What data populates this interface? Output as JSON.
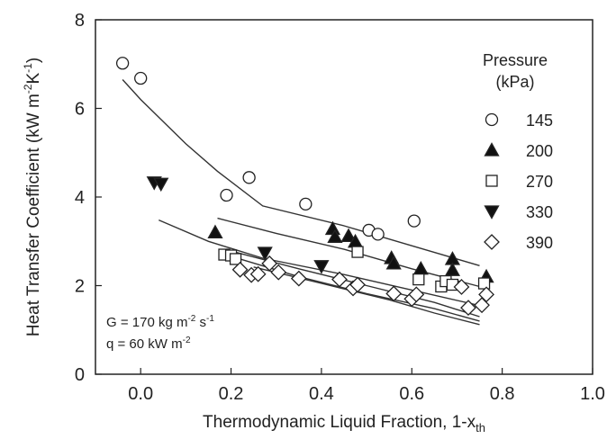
{
  "chart_data": {
    "type": "scatter",
    "xlabel": "Thermodynamic Liquid Fraction, 1-x",
    "xlabel_sub": "th",
    "ylabel": "Heat Transfer Coefficient (kW m",
    "ylabel_sup1": "-2",
    "ylabel_mid": "K",
    "ylabel_sup2": "-1",
    "ylabel_end": ")",
    "xlim": [
      -0.1,
      1.0
    ],
    "ylim": [
      0,
      8
    ],
    "xticks": [
      "0.0",
      "0.2",
      "0.4",
      "0.6",
      "0.8",
      "1.0"
    ],
    "xtick_values": [
      0,
      0.2,
      0.4,
      0.6,
      0.8,
      1.0
    ],
    "yticks": [
      "0",
      "2",
      "4",
      "6",
      "8"
    ],
    "ytick_values": [
      0,
      2,
      4,
      6,
      8
    ],
    "grid": false,
    "legend_position": "right",
    "legend_title_line1": "Pressure",
    "legend_title_line2": "(kPa)",
    "series": [
      {
        "name": "145",
        "marker": "circle",
        "points": [
          [
            -0.04,
            7.02
          ],
          [
            0.0,
            6.68
          ],
          [
            0.19,
            4.04
          ],
          [
            0.24,
            4.44
          ],
          [
            0.365,
            3.84
          ],
          [
            0.505,
            3.25
          ],
          [
            0.525,
            3.16
          ],
          [
            0.605,
            3.46
          ]
        ]
      },
      {
        "name": "200",
        "marker": "triangle-up",
        "points": [
          [
            0.165,
            3.2
          ],
          [
            0.425,
            3.28
          ],
          [
            0.43,
            3.1
          ],
          [
            0.46,
            3.12
          ],
          [
            0.475,
            2.99
          ],
          [
            0.555,
            2.62
          ],
          [
            0.56,
            2.5
          ],
          [
            0.62,
            2.38
          ],
          [
            0.69,
            2.6
          ],
          [
            0.69,
            2.35
          ],
          [
            0.765,
            2.2
          ]
        ]
      },
      {
        "name": "270",
        "marker": "square",
        "points": [
          [
            0.185,
            2.7
          ],
          [
            0.2,
            2.68
          ],
          [
            0.21,
            2.6
          ],
          [
            0.48,
            2.76
          ],
          [
            0.615,
            2.14
          ],
          [
            0.665,
            1.98
          ],
          [
            0.675,
            2.1
          ],
          [
            0.69,
            2.02
          ],
          [
            0.76,
            2.05
          ]
        ]
      },
      {
        "name": "330",
        "marker": "triangle-down",
        "points": [
          [
            0.03,
            4.33
          ],
          [
            0.045,
            4.3
          ],
          [
            0.275,
            2.74
          ],
          [
            0.4,
            2.44
          ]
        ]
      },
      {
        "name": "390",
        "marker": "diamond",
        "points": [
          [
            0.22,
            2.36
          ],
          [
            0.245,
            2.24
          ],
          [
            0.26,
            2.26
          ],
          [
            0.285,
            2.5
          ],
          [
            0.305,
            2.3
          ],
          [
            0.35,
            2.16
          ],
          [
            0.44,
            2.14
          ],
          [
            0.47,
            1.94
          ],
          [
            0.48,
            2.02
          ],
          [
            0.56,
            1.82
          ],
          [
            0.6,
            1.7
          ],
          [
            0.61,
            1.8
          ],
          [
            0.71,
            1.97
          ],
          [
            0.725,
            1.5
          ],
          [
            0.755,
            1.56
          ],
          [
            0.765,
            1.8
          ]
        ]
      }
    ],
    "fit_curves": [
      {
        "points": [
          [
            -0.04,
            6.65
          ],
          [
            0.0,
            6.2
          ],
          [
            0.1,
            5.2
          ],
          [
            0.17,
            4.58
          ],
          [
            0.27,
            3.8
          ],
          [
            0.45,
            3.35
          ],
          [
            0.6,
            2.9
          ],
          [
            0.75,
            2.45
          ]
        ]
      },
      {
        "points": [
          [
            0.17,
            3.52
          ],
          [
            0.3,
            3.18
          ],
          [
            0.45,
            2.82
          ],
          [
            0.6,
            2.38
          ],
          [
            0.75,
            1.98
          ]
        ]
      },
      {
        "points": [
          [
            0.04,
            3.48
          ],
          [
            0.15,
            3.0
          ],
          [
            0.27,
            2.62
          ],
          [
            0.45,
            2.25
          ],
          [
            0.6,
            1.9
          ],
          [
            0.75,
            1.55
          ]
        ]
      },
      {
        "points": [
          [
            0.2,
            2.78
          ],
          [
            0.35,
            2.38
          ],
          [
            0.5,
            2.0
          ],
          [
            0.65,
            1.62
          ],
          [
            0.75,
            1.3
          ]
        ]
      },
      {
        "points": [
          [
            0.22,
            2.6
          ],
          [
            0.35,
            2.2
          ],
          [
            0.5,
            1.82
          ],
          [
            0.65,
            1.48
          ],
          [
            0.75,
            1.2
          ]
        ]
      },
      {
        "points": [
          [
            0.25,
            2.42
          ],
          [
            0.4,
            2.05
          ],
          [
            0.55,
            1.68
          ],
          [
            0.65,
            1.38
          ],
          [
            0.75,
            1.12
          ]
        ]
      }
    ],
    "annotation_line1_pre": "G = 170 kg m",
    "annotation_line1_sup": "-2",
    "annotation_line1_mid": " s",
    "annotation_line1_sup2": "-1",
    "annotation_line2_pre": "q =  60  kW m",
    "annotation_line2_sup": "-2"
  }
}
